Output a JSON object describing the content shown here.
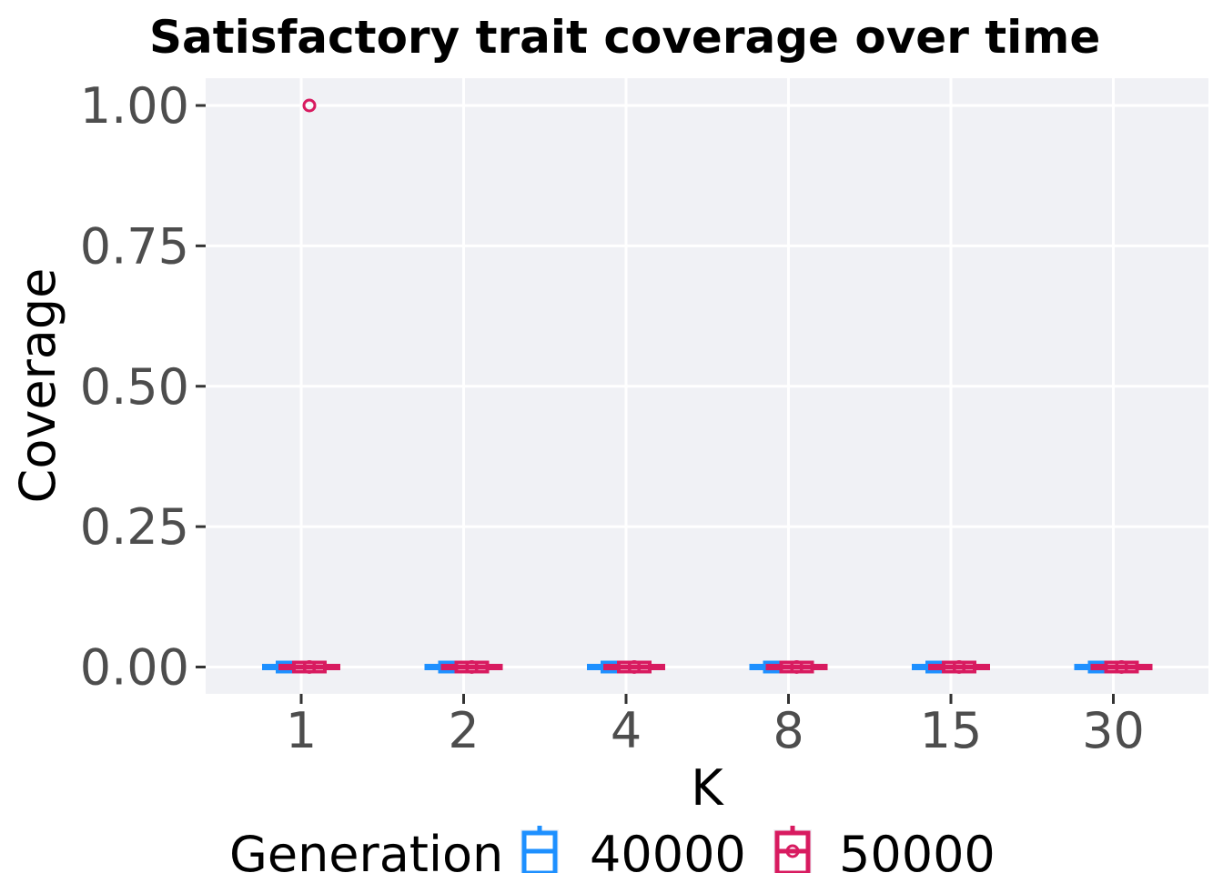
{
  "chart_data": {
    "type": "box",
    "title": "Satisfactory trait coverage over time",
    "xlabel": "K",
    "ylabel": "Coverage",
    "categories": [
      "1",
      "2",
      "4",
      "8",
      "15",
      "30"
    ],
    "ylim": [
      -0.05,
      1.05
    ],
    "yticks": [
      0.0,
      0.25,
      0.5,
      0.75,
      1.0
    ],
    "ytick_labels": [
      "0.00",
      "0.25",
      "0.50",
      "0.75",
      "1.00"
    ],
    "grid": true,
    "legend": {
      "title": "Generation",
      "placement": "bottom",
      "entries": [
        "40000",
        "50000"
      ]
    },
    "series": [
      {
        "name": "40000",
        "color": "#1e90ff",
        "boxes": [
          {
            "category": "1",
            "min": 0,
            "q1": 0,
            "median": 0,
            "q3": 0,
            "max": 0,
            "outliers": []
          },
          {
            "category": "2",
            "min": 0,
            "q1": 0,
            "median": 0,
            "q3": 0,
            "max": 0,
            "outliers": []
          },
          {
            "category": "4",
            "min": 0,
            "q1": 0,
            "median": 0,
            "q3": 0,
            "max": 0,
            "outliers": []
          },
          {
            "category": "8",
            "min": 0,
            "q1": 0,
            "median": 0,
            "q3": 0,
            "max": 0,
            "outliers": []
          },
          {
            "category": "15",
            "min": 0,
            "q1": 0,
            "median": 0,
            "q3": 0,
            "max": 0,
            "outliers": []
          },
          {
            "category": "30",
            "min": 0,
            "q1": 0,
            "median": 0,
            "q3": 0,
            "max": 0,
            "outliers": []
          }
        ]
      },
      {
        "name": "50000",
        "color": "#d81b60",
        "boxes": [
          {
            "category": "1",
            "min": 0,
            "q1": 0,
            "median": 0,
            "q3": 0,
            "max": 0,
            "outliers": [
              0,
              1.0
            ]
          },
          {
            "category": "2",
            "min": 0,
            "q1": 0,
            "median": 0,
            "q3": 0,
            "max": 0,
            "outliers": [
              0
            ]
          },
          {
            "category": "4",
            "min": 0,
            "q1": 0,
            "median": 0,
            "q3": 0,
            "max": 0,
            "outliers": [
              0
            ]
          },
          {
            "category": "8",
            "min": 0,
            "q1": 0,
            "median": 0,
            "q3": 0,
            "max": 0,
            "outliers": [
              0
            ]
          },
          {
            "category": "15",
            "min": 0,
            "q1": 0,
            "median": 0,
            "q3": 0,
            "max": 0,
            "outliers": [
              0
            ]
          },
          {
            "category": "30",
            "min": 0,
            "q1": 0,
            "median": 0,
            "q3": 0,
            "max": 0,
            "outliers": [
              0
            ]
          }
        ]
      }
    ],
    "panel_background": "#f0f1f5",
    "grid_color": "#ffffff"
  }
}
